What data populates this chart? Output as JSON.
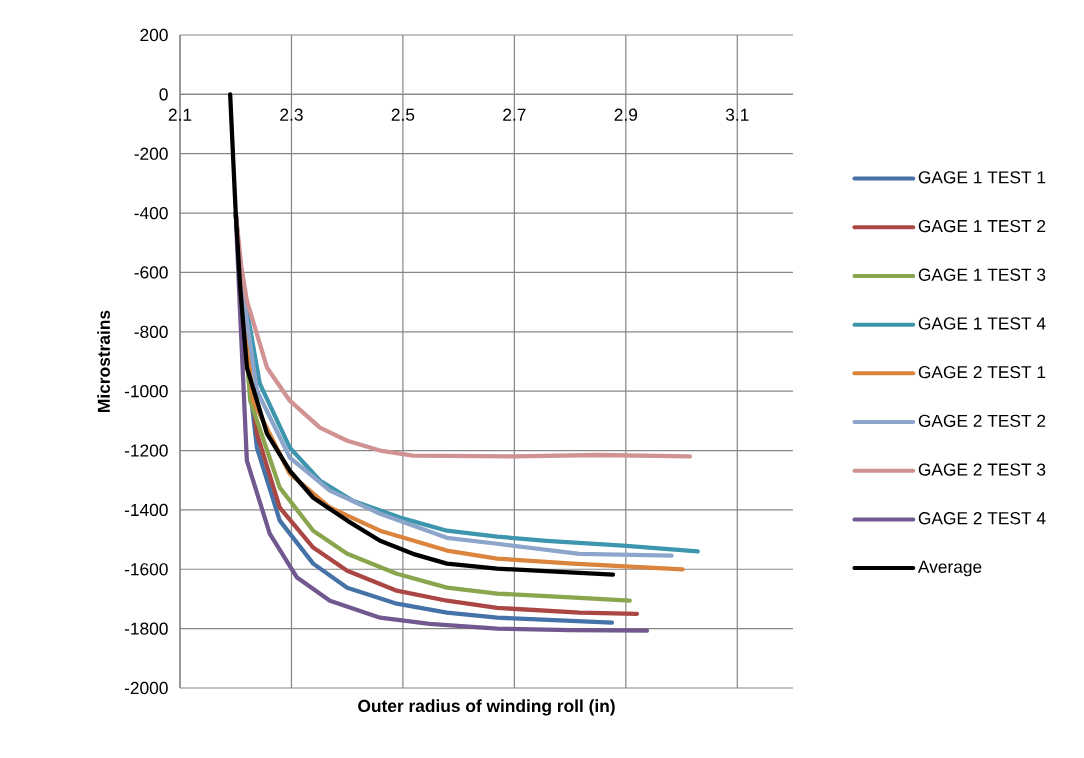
{
  "chart_data": {
    "type": "line",
    "xlabel": "Outer radius of winding roll (in)",
    "ylabel": "Microstrains",
    "xlim": [
      2.1,
      3.2
    ],
    "xticks": [
      2.1,
      2.3,
      2.5,
      2.7,
      2.9,
      3.1
    ],
    "ylim": [
      -2000,
      200
    ],
    "yticks": [
      -2000,
      -1800,
      -1600,
      -1400,
      -1200,
      -1000,
      -800,
      -600,
      -400,
      -200,
      0,
      200
    ],
    "grid": true,
    "legend": "right",
    "marker": "none",
    "line_style": "solid",
    "series": [
      {
        "name": "GAGE 1 TEST 1",
        "color": "#4572a7",
        "x": [
          2.2,
          2.21,
          2.22,
          2.238,
          2.279,
          2.339,
          2.4,
          2.489,
          2.579,
          2.669,
          2.75,
          2.875
        ],
        "values": [
          -400,
          -650,
          -900,
          -1190,
          -1436,
          -1581,
          -1662,
          -1716,
          -1746,
          -1763,
          -1770,
          -1780
        ]
      },
      {
        "name": "GAGE 1 TEST 2",
        "color": "#aa4643",
        "x": [
          2.2,
          2.21,
          2.22,
          2.238,
          2.279,
          2.339,
          2.4,
          2.489,
          2.579,
          2.669,
          2.817,
          2.92
        ],
        "values": [
          -400,
          -650,
          -880,
          -1143,
          -1392,
          -1527,
          -1605,
          -1672,
          -1706,
          -1730,
          -1746,
          -1750
        ]
      },
      {
        "name": "GAGE 1 TEST 3",
        "color": "#89a54e",
        "x": [
          2.2,
          2.21,
          2.226,
          2.279,
          2.339,
          2.4,
          2.489,
          2.579,
          2.669,
          2.817,
          2.907
        ],
        "values": [
          -400,
          -650,
          -1032,
          -1325,
          -1470,
          -1548,
          -1615,
          -1662,
          -1682,
          -1696,
          -1706
        ]
      },
      {
        "name": "GAGE 1 TEST 4",
        "color": "#3d96ae",
        "x": [
          2.2,
          2.21,
          2.243,
          2.297,
          2.351,
          2.41,
          2.495,
          2.579,
          2.669,
          2.758,
          2.895,
          3.029
        ],
        "values": [
          -400,
          -620,
          -974,
          -1190,
          -1301,
          -1369,
          -1426,
          -1470,
          -1490,
          -1504,
          -1520,
          -1540
        ]
      },
      {
        "name": "GAGE 2 TEST 1",
        "color": "#db843d",
        "x": [
          2.2,
          2.21,
          2.231,
          2.297,
          2.369,
          2.459,
          2.579,
          2.669,
          2.805,
          3.002
        ],
        "values": [
          -400,
          -640,
          -1032,
          -1278,
          -1392,
          -1470,
          -1537,
          -1564,
          -1581,
          -1600
        ]
      },
      {
        "name": "GAGE 2 TEST 2",
        "color": "#8ea5cb",
        "x": [
          2.2,
          2.21,
          2.238,
          2.297,
          2.369,
          2.459,
          2.579,
          2.669,
          2.817,
          2.982
        ],
        "values": [
          -400,
          -630,
          -998,
          -1224,
          -1335,
          -1413,
          -1494,
          -1514,
          -1548,
          -1554
        ]
      },
      {
        "name": "GAGE 2 TEST 3",
        "color": "#d09293",
        "x": [
          2.2,
          2.21,
          2.22,
          2.256,
          2.297,
          2.351,
          2.4,
          2.459,
          2.518,
          2.7,
          2.85,
          3.015
        ],
        "values": [
          -400,
          -580,
          -695,
          -920,
          -1032,
          -1123,
          -1167,
          -1200,
          -1217,
          -1220,
          -1215,
          -1220
        ]
      },
      {
        "name": "GAGE 2 TEST 4",
        "color": "#71588f",
        "x": [
          2.2,
          2.207,
          2.22,
          2.261,
          2.31,
          2.369,
          2.459,
          2.548,
          2.669,
          2.8,
          2.938
        ],
        "values": [
          -400,
          -700,
          -1234,
          -1480,
          -1628,
          -1706,
          -1763,
          -1784,
          -1800,
          -1805,
          -1807
        ]
      },
      {
        "name": "Average",
        "color": "#000000",
        "x": [
          2.19,
          2.195,
          2.2,
          2.208,
          2.22,
          2.256,
          2.297,
          2.339,
          2.4,
          2.459,
          2.518,
          2.579,
          2.669,
          2.877
        ],
        "values": [
          0,
          -200,
          -400,
          -650,
          -920,
          -1143,
          -1268,
          -1359,
          -1436,
          -1504,
          -1548,
          -1581,
          -1598,
          -1618
        ]
      }
    ]
  }
}
